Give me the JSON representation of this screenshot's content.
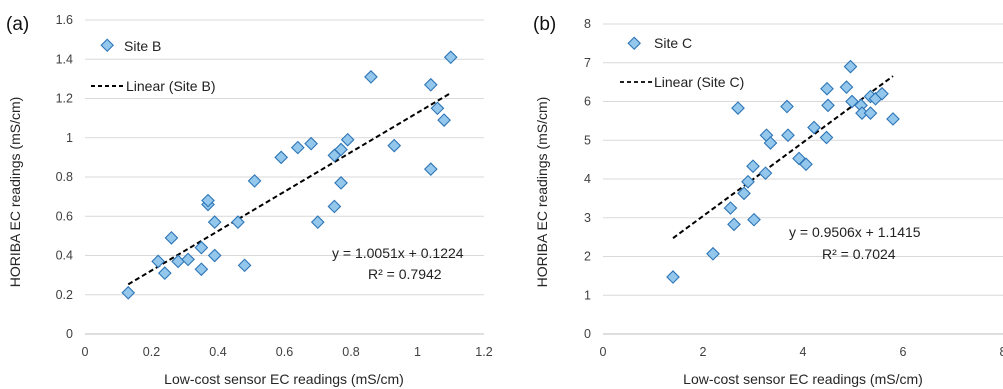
{
  "chart_data": [
    {
      "type": "scatter",
      "panel_label": "(a)",
      "xlabel": "Low-cost sensor EC readings (mS/cm)",
      "ylabel": "HORIBA EC readings (mS/cm)",
      "xlim": [
        0,
        1.2
      ],
      "ylim": [
        0,
        1.6
      ],
      "x_ticks": [
        "0",
        "0.2",
        "0.4",
        "0.6",
        "0.8",
        "1",
        "1.2"
      ],
      "y_ticks": [
        "0",
        "0.2",
        "0.4",
        "0.6",
        "0.8",
        "1",
        "1.2",
        "1.4",
        "1.6"
      ],
      "grid": true,
      "legend_position": "top-left",
      "legend": [
        "Site B",
        "Linear (Site B)"
      ],
      "series": [
        {
          "name": "Site B",
          "points": [
            [
              0.13,
              0.21
            ],
            [
              0.22,
              0.37
            ],
            [
              0.24,
              0.31
            ],
            [
              0.26,
              0.49
            ],
            [
              0.28,
              0.37
            ],
            [
              0.31,
              0.38
            ],
            [
              0.35,
              0.33
            ],
            [
              0.35,
              0.44
            ],
            [
              0.37,
              0.66
            ],
            [
              0.37,
              0.68
            ],
            [
              0.39,
              0.57
            ],
            [
              0.39,
              0.4
            ],
            [
              0.46,
              0.57
            ],
            [
              0.48,
              0.35
            ],
            [
              0.51,
              0.78
            ],
            [
              0.59,
              0.9
            ],
            [
              0.64,
              0.95
            ],
            [
              0.68,
              0.97
            ],
            [
              0.7,
              0.57
            ],
            [
              0.75,
              0.65
            ],
            [
              0.75,
              0.91
            ],
            [
              0.77,
              0.77
            ],
            [
              0.77,
              0.94
            ],
            [
              0.79,
              0.99
            ],
            [
              0.86,
              1.31
            ],
            [
              0.93,
              0.96
            ],
            [
              1.04,
              1.27
            ],
            [
              1.04,
              0.84
            ],
            [
              1.06,
              1.15
            ],
            [
              1.08,
              1.09
            ],
            [
              1.1,
              1.41
            ]
          ]
        }
      ],
      "trendline": {
        "name": "Linear (Site B)",
        "slope": 1.0051,
        "intercept": 0.1224,
        "x_range": [
          0.13,
          1.1
        ]
      },
      "equation": "y = 1.0051x + 0.1224",
      "r2": "R² = 0.7942"
    },
    {
      "type": "scatter",
      "panel_label": "(b)",
      "xlabel": "Low-cost sensor EC readings (mS/cm)",
      "ylabel": "HORIBA EC readings (mS/cm)",
      "xlim": [
        0,
        8
      ],
      "ylim": [
        0,
        8
      ],
      "x_ticks": [
        "0",
        "2",
        "4",
        "6",
        "8"
      ],
      "y_ticks": [
        "0",
        "1",
        "2",
        "3",
        "4",
        "5",
        "6",
        "7",
        "8"
      ],
      "grid": true,
      "legend_position": "top-left",
      "legend": [
        "Site C",
        "Linear (Site C)"
      ],
      "series": [
        {
          "name": "Site C",
          "points": [
            [
              1.4,
              1.47
            ],
            [
              2.2,
              2.07
            ],
            [
              2.55,
              3.25
            ],
            [
              2.62,
              2.83
            ],
            [
              2.7,
              5.83
            ],
            [
              2.82,
              3.63
            ],
            [
              2.9,
              3.93
            ],
            [
              3.0,
              4.33
            ],
            [
              3.02,
              2.95
            ],
            [
              3.25,
              4.15
            ],
            [
              3.27,
              5.13
            ],
            [
              3.35,
              4.93
            ],
            [
              3.68,
              5.87
            ],
            [
              3.7,
              5.13
            ],
            [
              3.92,
              4.53
            ],
            [
              4.06,
              4.38
            ],
            [
              4.22,
              5.33
            ],
            [
              4.47,
              5.07
            ],
            [
              4.48,
              6.33
            ],
            [
              4.5,
              5.9
            ],
            [
              4.87,
              6.37
            ],
            [
              4.95,
              6.9
            ],
            [
              4.98,
              6.0
            ],
            [
              5.16,
              5.9
            ],
            [
              5.18,
              5.7
            ],
            [
              5.35,
              5.7
            ],
            [
              5.35,
              6.13
            ],
            [
              5.45,
              6.07
            ],
            [
              5.58,
              6.2
            ],
            [
              5.8,
              5.55
            ]
          ]
        }
      ],
      "trendline": {
        "name": "Linear (Site C)",
        "slope": 0.9506,
        "intercept": 1.1415,
        "x_range": [
          1.4,
          5.8
        ]
      },
      "equation": "y = 0.9506x + 1.1415",
      "r2": "R² = 0.7024"
    }
  ]
}
